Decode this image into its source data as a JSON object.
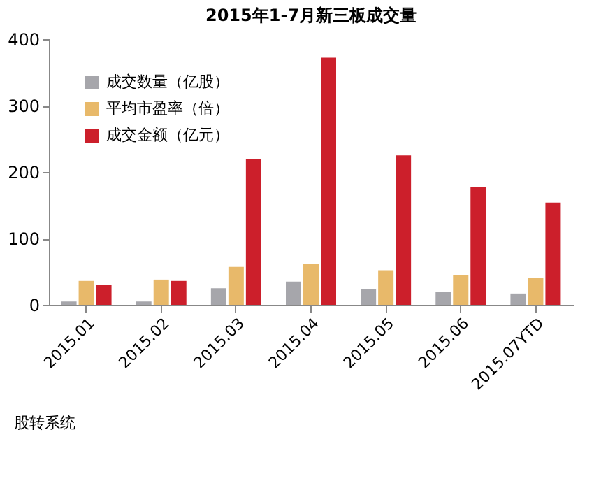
{
  "chart_data": {
    "type": "bar",
    "title": "2015年1-7月新三板成交量",
    "categories": [
      "2015.01",
      "2015.02",
      "2015.03",
      "2015.04",
      "2015.05",
      "2015.06",
      "2015.07YTD"
    ],
    "series": [
      {
        "name": "成交数量（亿股）",
        "color": "#a6a6ab",
        "values": [
          5,
          5,
          25,
          35,
          24,
          20,
          17
        ]
      },
      {
        "name": "平均市盈率（倍）",
        "color": "#e8b96a",
        "values": [
          36,
          38,
          57,
          62,
          52,
          45,
          40
        ]
      },
      {
        "name": "成交金额（亿元）",
        "color": "#cc1f2b",
        "values": [
          30,
          36,
          220,
          372,
          225,
          177,
          154
        ]
      }
    ],
    "ylim": [
      0,
      400
    ],
    "yticks": [
      0,
      100,
      200,
      300,
      400
    ],
    "grid": false,
    "legend": "top left",
    "annotations": [
      "股转系统"
    ]
  }
}
